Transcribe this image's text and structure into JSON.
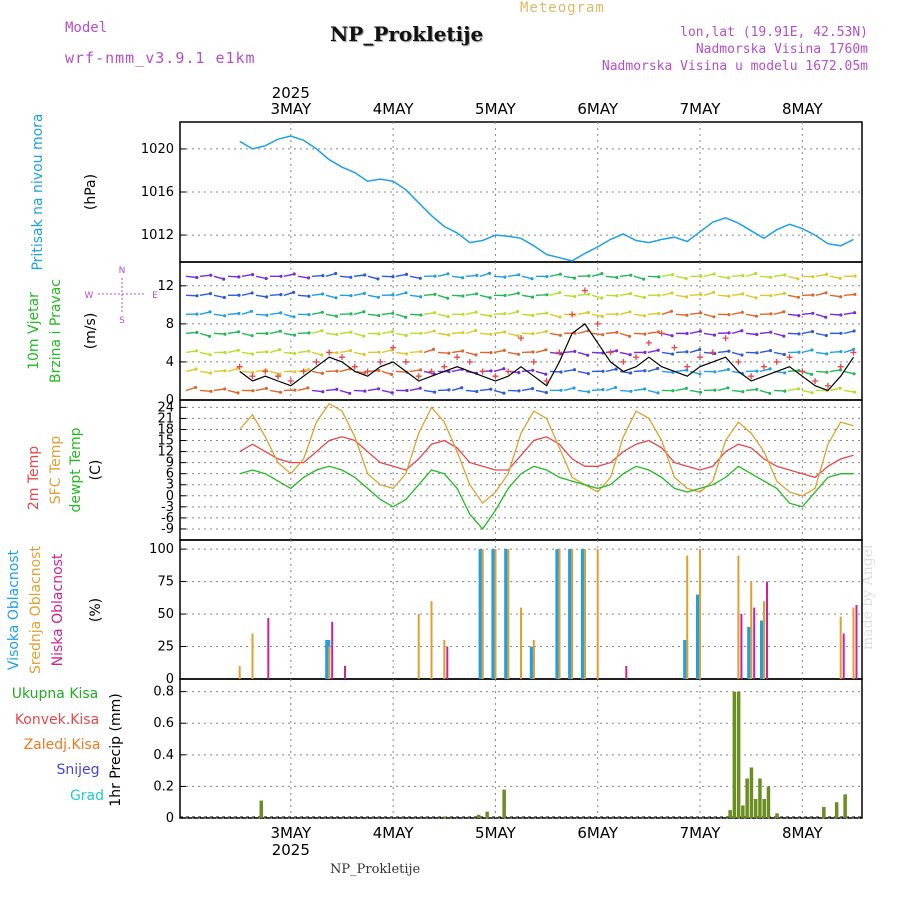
{
  "header": {
    "model_label": "Model",
    "model_value": "wrf-nmm_v3.9.1 e1km",
    "meteogram_label": "Meteogram",
    "station_title": "NP_Prokletije",
    "lonlat": "lon,lat (19.91E, 42.53N)",
    "elevation": "Nadmorska Visina 1760m",
    "model_elevation": "Nadmorska Visina u modelu 1672.05m",
    "footer_station": "NP_Prokletije",
    "made_by": "made by Angel"
  },
  "axis_time": {
    "year": "2025",
    "days": [
      "3MAY",
      "4MAY",
      "5MAY",
      "6MAY",
      "7MAY",
      "8MAY"
    ]
  },
  "colors": {
    "pressure": "#1ea0e6",
    "temp2m": "#e8474a",
    "sfc_temp": "#e0a030",
    "dewpt": "#22bb22",
    "cloud_high": "#1ea0e6",
    "cloud_mid": "#e0a030",
    "cloud_low": "#cc2299",
    "precip_total": "#22aa22",
    "precip_conv": "#e8474a",
    "precip_frozen": "#f07820",
    "snow": "#4444dd",
    "hail": "#22cccc",
    "precip_bar": "#6b8e23"
  },
  "chart_data": [
    {
      "type": "line",
      "panel": "pressure",
      "ylabel_outer": "Pritisak na nivou mora",
      "ylabel_unit": "(hPa)",
      "yticks": [
        1012,
        1016,
        1020
      ],
      "ylim": [
        1009.5,
        1022.5
      ],
      "x_hours": [
        0,
        3,
        6,
        9,
        12,
        15,
        18,
        21,
        24,
        27,
        30,
        33,
        36,
        39,
        42,
        45,
        48,
        51,
        54,
        57,
        60,
        63,
        66,
        69,
        72,
        75,
        78,
        81,
        84,
        87,
        90,
        93,
        96,
        99,
        102,
        105,
        108,
        111,
        114,
        117,
        120,
        123,
        126,
        129,
        132,
        135,
        138,
        141,
        144
      ],
      "series": [
        {
          "key": "mslp",
          "values": [
            1020.7,
            1020.0,
            1020.3,
            1020.9,
            1021.2,
            1020.8,
            1020.0,
            1019.0,
            1018.3,
            1017.8,
            1017.0,
            1017.2,
            1017.0,
            1016.2,
            1015.0,
            1013.8,
            1012.8,
            1012.2,
            1011.3,
            1011.5,
            1012.0,
            1011.9,
            1011.7,
            1011.0,
            1010.2,
            1009.9,
            1009.6,
            1010.3,
            1010.9,
            1011.6,
            1012.1,
            1011.5,
            1011.3,
            1011.6,
            1011.8,
            1011.4,
            1012.3,
            1013.2,
            1013.6,
            1013.1,
            1012.4,
            1011.7,
            1012.5,
            1013.0,
            1012.6,
            1012.0,
            1011.2,
            1011.0,
            1011.6
          ]
        }
      ]
    },
    {
      "type": "scatter",
      "panel": "wind",
      "ylabel_outer1": "10m Vjetar",
      "ylabel_outer2": "Brzina i Pravac",
      "ylabel_unit": "(m/s)",
      "compass": [
        "N",
        "W",
        "E",
        "S"
      ],
      "yticks": [
        0,
        4,
        8,
        12
      ],
      "ylim": [
        0,
        14.5
      ],
      "x_hours": [
        0,
        3,
        6,
        9,
        12,
        15,
        18,
        21,
        24,
        27,
        30,
        33,
        36,
        39,
        42,
        45,
        48,
        51,
        54,
        57,
        60,
        63,
        66,
        69,
        72,
        75,
        78,
        81,
        84,
        87,
        90,
        93,
        96,
        99,
        102,
        105,
        108,
        111,
        114,
        117,
        120,
        123,
        126,
        129,
        132,
        135,
        138,
        141,
        144
      ],
      "series": [
        {
          "key": "speed",
          "values": [
            3.0,
            2.0,
            2.5,
            2.0,
            1.5,
            2.5,
            3.5,
            4.5,
            4.0,
            3.0,
            2.5,
            3.5,
            4.0,
            3.0,
            2.0,
            2.5,
            3.0,
            3.5,
            3.0,
            2.5,
            2.0,
            2.5,
            3.5,
            2.5,
            1.5,
            4.0,
            7.0,
            8.0,
            6.0,
            4.0,
            3.0,
            3.5,
            4.5,
            3.5,
            3.0,
            2.5,
            3.5,
            4.0,
            4.5,
            3.0,
            2.0,
            2.5,
            3.0,
            3.5,
            2.5,
            1.5,
            1.0,
            2.5,
            4.5
          ]
        },
        {
          "key": "gust",
          "values": [
            3.5,
            2.5,
            3.0,
            2.5,
            2.0,
            3.0,
            4.0,
            5.0,
            4.5,
            3.5,
            3.0,
            4.0,
            5.5,
            4.0,
            2.5,
            3.0,
            3.5,
            4.5,
            4.0,
            3.0,
            2.5,
            3.0,
            6.5,
            4.0,
            2.0,
            5.0,
            9.0,
            11.5,
            8.0,
            5.0,
            4.0,
            4.5,
            6.0,
            7.0,
            5.5,
            3.5,
            4.5,
            5.0,
            6.5,
            4.0,
            2.5,
            3.5,
            4.0,
            4.5,
            3.0,
            2.0,
            1.5,
            3.5,
            5.0
          ]
        }
      ]
    },
    {
      "type": "line",
      "panel": "temperature",
      "ylabel_outer1": "2m Temp",
      "ylabel_outer2": "SFC Temp",
      "ylabel_outer3": "dewpt Temp",
      "ylabel_unit": "(C)",
      "yticks": [
        -9,
        -6,
        -3,
        0,
        3,
        6,
        9,
        12,
        15,
        18,
        21,
        24
      ],
      "ylim": [
        -12,
        26
      ],
      "x_hours": [
        0,
        3,
        6,
        9,
        12,
        15,
        18,
        21,
        24,
        27,
        30,
        33,
        36,
        39,
        42,
        45,
        48,
        51,
        54,
        57,
        60,
        63,
        66,
        69,
        72,
        75,
        78,
        81,
        84,
        87,
        90,
        93,
        96,
        99,
        102,
        105,
        108,
        111,
        114,
        117,
        120,
        123,
        126,
        129,
        132,
        135,
        138,
        141,
        144
      ],
      "series": [
        {
          "key": "t2m",
          "values": [
            12,
            14,
            12,
            10,
            9,
            9,
            12,
            15,
            16,
            15,
            12,
            9,
            8,
            7,
            10,
            14,
            15,
            13,
            9,
            8,
            7,
            7,
            11,
            15,
            16,
            14,
            10,
            8,
            8,
            9,
            12,
            14,
            15,
            13,
            9,
            8,
            7,
            8,
            12,
            14,
            13,
            10,
            8,
            7,
            6,
            5,
            8,
            10,
            11
          ]
        },
        {
          "key": "tsfc",
          "values": [
            18,
            22,
            16,
            9,
            6,
            10,
            20,
            25,
            23,
            16,
            6,
            3,
            2,
            6,
            17,
            24,
            20,
            12,
            3,
            -2,
            1,
            6,
            17,
            23,
            21,
            13,
            5,
            3,
            1,
            5,
            16,
            23,
            21,
            15,
            5,
            2,
            1,
            4,
            15,
            20,
            17,
            12,
            4,
            1,
            0,
            2,
            14,
            20,
            19
          ]
        },
        {
          "key": "dewpt",
          "values": [
            6,
            7,
            6,
            4,
            2,
            5,
            7,
            8,
            7,
            5,
            2,
            -1,
            -3,
            -1,
            3,
            7,
            6,
            2,
            -5,
            -9,
            -4,
            2,
            6,
            8,
            7,
            5,
            4,
            3,
            2,
            3,
            6,
            8,
            7,
            5,
            2,
            1,
            2,
            3,
            5,
            8,
            6,
            4,
            2,
            -2,
            -3,
            1,
            5,
            6,
            6
          ]
        }
      ]
    },
    {
      "type": "bar",
      "panel": "clouds",
      "ylabel_outer1": "Visoka Oblacnost",
      "ylabel_outer2": "Srednja Oblacnost",
      "ylabel_outer3": "Niska Oblacnost",
      "ylabel_unit": "(%)",
      "yticks": [
        0,
        25,
        50,
        75,
        100
      ],
      "ylim": [
        0,
        107
      ],
      "x_hours": [
        0,
        3,
        6,
        9,
        12,
        15,
        18,
        21,
        24,
        27,
        30,
        33,
        36,
        39,
        42,
        45,
        48,
        51,
        54,
        57,
        60,
        63,
        66,
        69,
        72,
        75,
        78,
        81,
        84,
        87,
        90,
        93,
        96,
        99,
        102,
        105,
        108,
        111,
        114,
        117,
        120,
        123,
        126,
        129,
        132,
        135,
        138,
        141,
        144
      ],
      "series": [
        {
          "key": "high",
          "values": [
            0,
            0,
            0,
            0,
            0,
            0,
            0,
            30,
            0,
            0,
            0,
            0,
            0,
            0,
            0,
            0,
            0,
            0,
            0,
            100,
            100,
            100,
            0,
            25,
            0,
            100,
            100,
            100,
            0,
            0,
            0,
            0,
            0,
            0,
            0,
            30,
            65,
            0,
            0,
            0,
            40,
            45,
            0,
            0,
            0,
            0,
            0,
            0,
            0
          ]
        },
        {
          "key": "mid",
          "values": [
            10,
            35,
            0,
            0,
            0,
            0,
            0,
            25,
            0,
            0,
            0,
            0,
            0,
            0,
            50,
            60,
            30,
            0,
            0,
            100,
            100,
            100,
            55,
            30,
            0,
            100,
            100,
            100,
            100,
            0,
            0,
            0,
            0,
            0,
            0,
            95,
            100,
            0,
            0,
            95,
            75,
            60,
            0,
            0,
            0,
            0,
            0,
            48,
            55
          ]
        },
        {
          "key": "low",
          "values": [
            0,
            0,
            47,
            0,
            0,
            0,
            0,
            44,
            10,
            0,
            0,
            0,
            0,
            0,
            0,
            0,
            25,
            0,
            0,
            0,
            0,
            0,
            0,
            0,
            0,
            0,
            0,
            0,
            0,
            0,
            10,
            0,
            0,
            0,
            0,
            0,
            0,
            0,
            0,
            50,
            55,
            75,
            0,
            0,
            0,
            0,
            0,
            35,
            57
          ]
        }
      ]
    },
    {
      "type": "bar",
      "panel": "precip",
      "legend": [
        "Ukupna Kisa",
        "Konvek.Kisa",
        "Zaledj.Kisa",
        "Snijeg",
        "Grad"
      ],
      "ylabel_outer": "1hr Precip (mm)",
      "yticks": [
        0,
        0.2,
        0.4,
        0.6,
        0.8
      ],
      "ylim": [
        0,
        0.88
      ],
      "x_hours": [
        5,
        48,
        56,
        58,
        62,
        115,
        116,
        117,
        118,
        119,
        120,
        121,
        122,
        123,
        124,
        126,
        137,
        140,
        142
      ],
      "series": [
        {
          "key": "total",
          "values": [
            0.11,
            0.01,
            0.02,
            0.04,
            0.18,
            0.05,
            0.8,
            0.8,
            0.08,
            0.25,
            0.32,
            0.12,
            0.25,
            0.12,
            0.2,
            0.03,
            0.07,
            0.1,
            0.15
          ]
        }
      ]
    }
  ]
}
